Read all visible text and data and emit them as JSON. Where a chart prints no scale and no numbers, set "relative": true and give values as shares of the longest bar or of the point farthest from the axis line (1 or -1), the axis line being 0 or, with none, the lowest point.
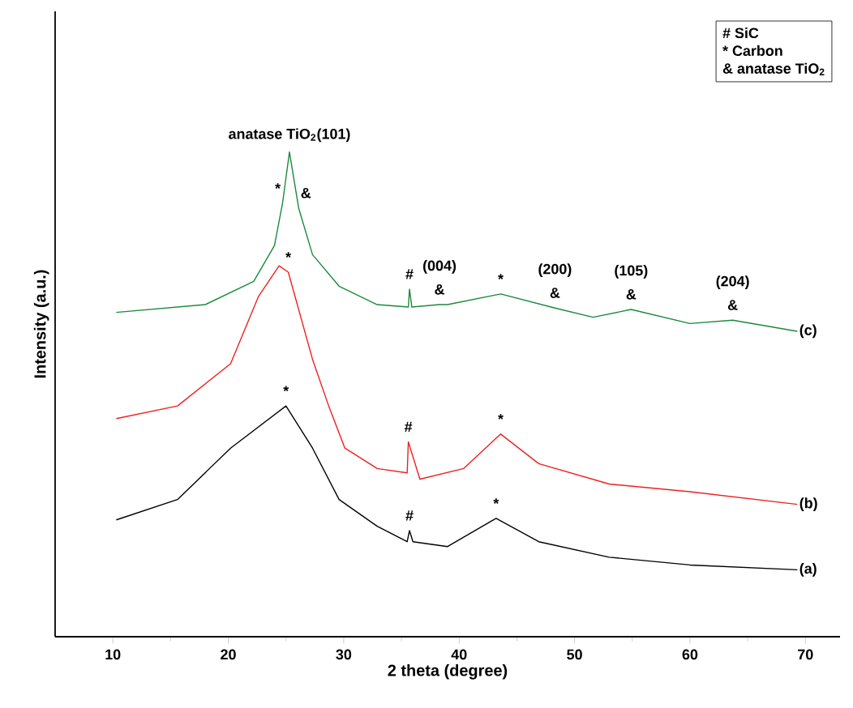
{
  "chart_data": {
    "type": "line",
    "relative": true,
    "xlabel": "2 theta (degree)",
    "ylabel": "Intensity (a.u.)",
    "xlim": [
      5,
      73
    ],
    "xticks": [
      10,
      20,
      30,
      40,
      50,
      60,
      70
    ],
    "marker": "none",
    "line_style": "solid",
    "grid": false,
    "series": [
      {
        "name": "(a)",
        "color": "#000000",
        "x": [
          10.3,
          15.6,
          20.2,
          25.0,
          27.3,
          29.6,
          32.9,
          35.5,
          35.7,
          36.0,
          39.0,
          43.2,
          46.9,
          53.0,
          60.0,
          69.3
        ],
        "values": [
          0.241,
          0.283,
          0.389,
          0.476,
          0.389,
          0.283,
          0.228,
          0.196,
          0.219,
          0.196,
          0.186,
          0.244,
          0.196,
          0.164,
          0.148,
          0.138
        ]
      },
      {
        "name": "(b)",
        "color": "#ee2020",
        "x": [
          10.3,
          15.6,
          20.2,
          22.6,
          24.4,
          25.2,
          27.3,
          28.7,
          30.1,
          32.9,
          35.5,
          35.6,
          36.6,
          40.4,
          43.6,
          46.9,
          53.0,
          60.0,
          69.3
        ],
        "values": [
          0.45,
          0.476,
          0.563,
          0.701,
          0.765,
          0.752,
          0.572,
          0.476,
          0.389,
          0.347,
          0.338,
          0.402,
          0.325,
          0.347,
          0.418,
          0.357,
          0.315,
          0.299,
          0.273
        ]
      },
      {
        "name": "(c)",
        "color": "#1a8a3c",
        "x": [
          10.3,
          18.0,
          22.2,
          24.0,
          24.7,
          25.3,
          26.1,
          27.3,
          29.6,
          32.9,
          35.6,
          35.7,
          35.9,
          38.3,
          39.0,
          43.6,
          48.3,
          51.6,
          54.9,
          60.0,
          63.7,
          69.3
        ],
        "values": [
          0.669,
          0.685,
          0.733,
          0.807,
          0.894,
          1.0,
          0.884,
          0.788,
          0.723,
          0.685,
          0.68,
          0.717,
          0.68,
          0.685,
          0.685,
          0.707,
          0.678,
          0.659,
          0.675,
          0.646,
          0.653,
          0.63
        ]
      }
    ],
    "annotations": [
      "# SiC",
      "* Carbon",
      "& anatase TiO$_{2}$",
      {
        "text": "anatase TiO$_{2}$(101)",
        "x": 25.3,
        "y": 1.0
      },
      {
        "text": "*",
        "x": 24.7,
        "y": 0.894
      },
      {
        "text": "&",
        "x": 26.1,
        "y": 0.884
      },
      {
        "text": "#",
        "x": 35.7,
        "y": 0.717
      },
      {
        "text": "&",
        "x": 38.3,
        "y": 0.685
      },
      {
        "text": "(004)",
        "x": 38.3,
        "y": 0.685
      },
      {
        "text": "*",
        "x": 43.6,
        "y": 0.707
      },
      {
        "text": "&",
        "x": 48.3,
        "y": 0.678
      },
      {
        "text": "(200)",
        "x": 48.3,
        "y": 0.678
      },
      {
        "text": "&",
        "x": 54.9,
        "y": 0.675
      },
      {
        "text": "(105)",
        "x": 54.9,
        "y": 0.675
      },
      {
        "text": "&",
        "x": 63.7,
        "y": 0.653
      },
      {
        "text": "(204)",
        "x": 63.7,
        "y": 0.653
      },
      {
        "text": "*",
        "x": 25.2,
        "y": 0.752
      },
      {
        "text": "*",
        "x": 25.0,
        "y": 0.476
      },
      {
        "text": "#",
        "x": 35.6,
        "y": 0.402
      },
      {
        "text": "*",
        "x": 43.6,
        "y": 0.418
      },
      {
        "text": "#",
        "x": 35.7,
        "y": 0.219
      },
      {
        "text": "*",
        "x": 43.2,
        "y": 0.244
      }
    ]
  }
}
